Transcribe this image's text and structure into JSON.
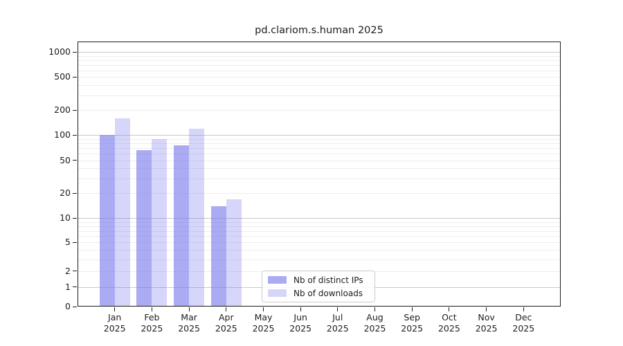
{
  "page": {
    "background": "#ffffff"
  },
  "chart_data": {
    "type": "bar",
    "title": "pd.clariom.s.human 2025",
    "x_year_label": "2025",
    "categories": [
      "Jan",
      "Feb",
      "Mar",
      "Apr",
      "May",
      "Jun",
      "Jul",
      "Aug",
      "Sep",
      "Oct",
      "Nov",
      "Dec"
    ],
    "series": [
      {
        "name": "Nb of distinct IPs",
        "color_hex": "#7777ee",
        "alpha": 0.62,
        "values": [
          100,
          66,
          76,
          14,
          0,
          0,
          0,
          0,
          0,
          0,
          0,
          0
        ]
      },
      {
        "name": "Nb of downloads",
        "color_hex": "#7777ee",
        "alpha": 0.3,
        "values": [
          160,
          90,
          120,
          17,
          0,
          0,
          0,
          0,
          0,
          0,
          0,
          0
        ]
      }
    ],
    "yticks": [
      0,
      1,
      2,
      5,
      10,
      20,
      50,
      100,
      200,
      500,
      1000
    ],
    "ylim": [
      0,
      1200
    ],
    "yscale": "symlog",
    "grid": true,
    "xlabel": "",
    "ylabel": "",
    "legend_position": "lower-center",
    "axis_color": "#1c1c1c",
    "major_grid_color": "#c9c9c9",
    "minor_grid_color": "#ededed",
    "title_color": "#1c1c1c"
  }
}
